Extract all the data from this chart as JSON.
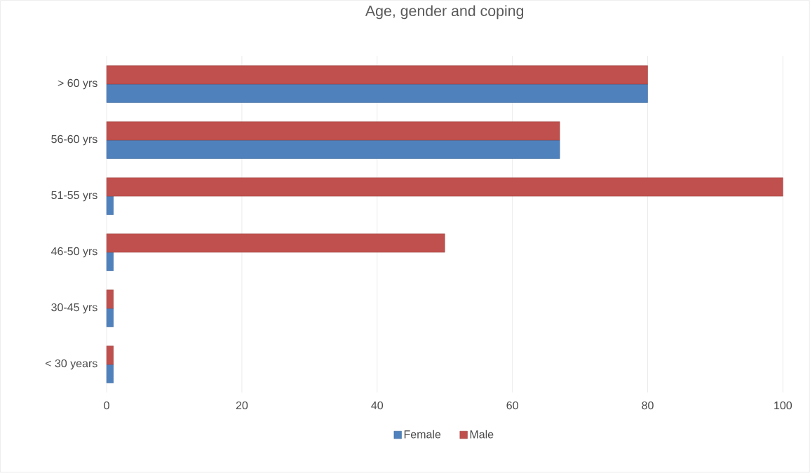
{
  "chart_data": {
    "type": "bar",
    "orientation": "horizontal",
    "title": "Age, gender and coping",
    "categories": [
      "> 60 yrs",
      "56-60 yrs",
      "51-55 yrs",
      "46-50 yrs",
      "30-45 yrs",
      "< 30 years"
    ],
    "series": [
      {
        "name": "Female",
        "color": "#4f81bd",
        "values": [
          80,
          67,
          1,
          1,
          1,
          1
        ]
      },
      {
        "name": "Male",
        "color": "#c0504d",
        "values": [
          80,
          67,
          100,
          50,
          1,
          1
        ]
      }
    ],
    "xlim": [
      0,
      100
    ],
    "xticks": [
      0,
      20,
      40,
      60,
      80,
      100
    ],
    "grid": "x",
    "legend": "bottom"
  }
}
